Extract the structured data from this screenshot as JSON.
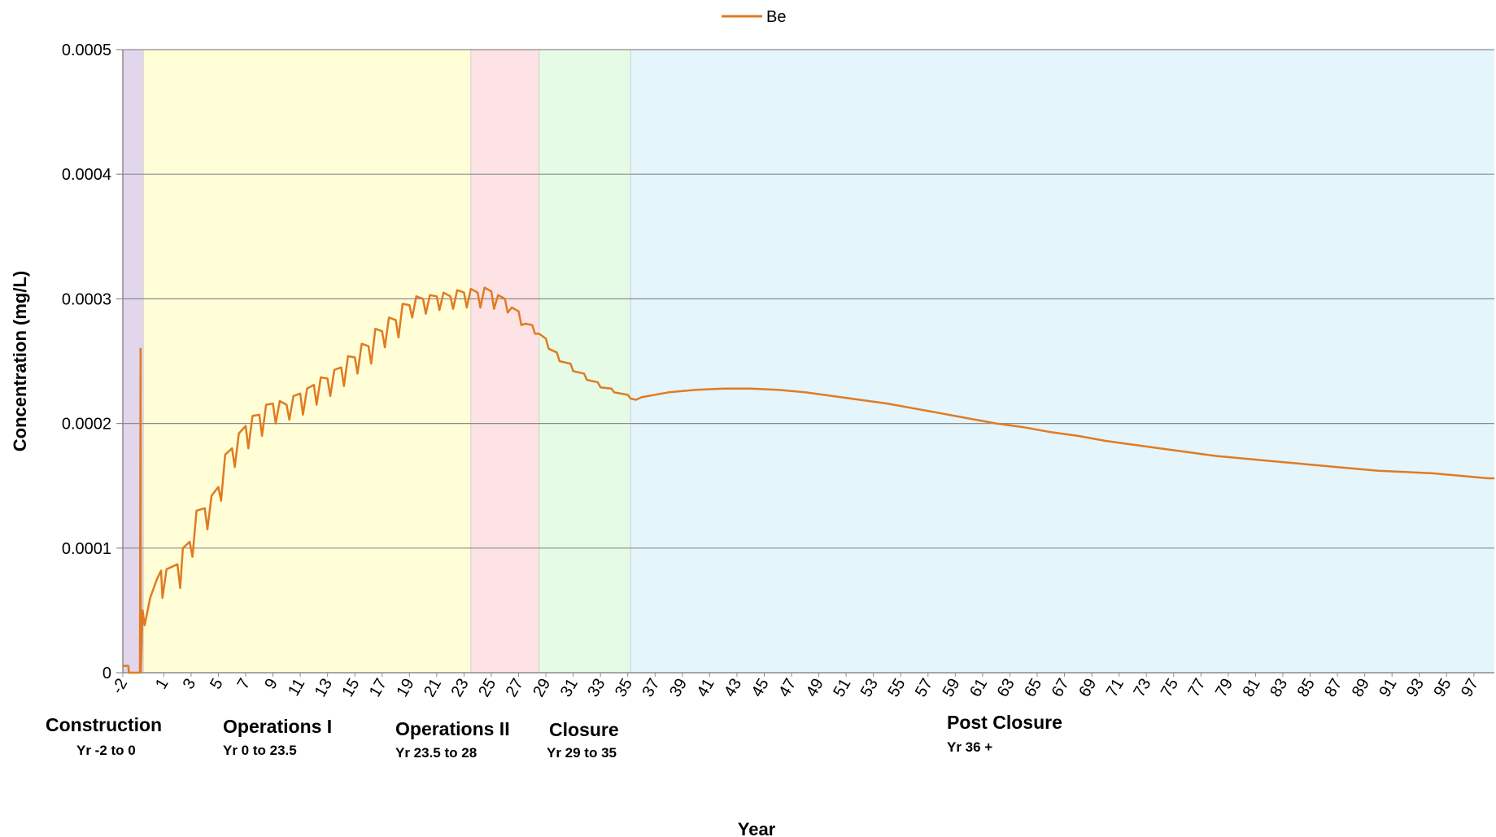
{
  "chart_data": {
    "type": "line",
    "title": "",
    "xlabel": "Year",
    "ylabel": "Concentration (mg/L)",
    "xlim": [
      -2,
      98.5
    ],
    "ylim": [
      0,
      0.0005
    ],
    "yticks": [
      {
        "value": 0,
        "label": "0"
      },
      {
        "value": 0.0001,
        "label": "0.0001"
      },
      {
        "value": 0.0002,
        "label": "0.0002"
      },
      {
        "value": 0.0003,
        "label": "0.0003"
      },
      {
        "value": 0.0004,
        "label": "0.0004"
      },
      {
        "value": 0.0005,
        "label": "0.0005"
      }
    ],
    "xticks": [
      "-2",
      "1",
      "3",
      "5",
      "7",
      "9",
      "11",
      "13",
      "15",
      "17",
      "19",
      "21",
      "23",
      "25",
      "27",
      "29",
      "31",
      "33",
      "35",
      "37",
      "39",
      "41",
      "43",
      "45",
      "47",
      "49",
      "51",
      "53",
      "55",
      "57",
      "59",
      "61",
      "63",
      "65",
      "67",
      "69",
      "71",
      "73",
      "75",
      "77",
      "79",
      "81",
      "83",
      "85",
      "87",
      "89",
      "91",
      "93",
      "95",
      "97"
    ],
    "grid": true,
    "legend_position": "top-center",
    "phases": [
      {
        "name": "Construction",
        "range": "Yr -2 to 0",
        "start": -2,
        "end": -0.5,
        "color": "#e2d6ec"
      },
      {
        "name": "Operations I",
        "range": "Yr 0 to 23.5",
        "start": -0.5,
        "end": 23.5,
        "color": "#fffed7"
      },
      {
        "name": "Operations II",
        "range": "Yr 23.5 to 28",
        "start": 23.5,
        "end": 28.5,
        "color": "#fde3e5"
      },
      {
        "name": "Closure",
        "range": "Yr 29 to 35",
        "start": 28.5,
        "end": 35.2,
        "color": "#e6fbe6"
      },
      {
        "name": "Post Closure",
        "range": "Yr 36 +",
        "start": 35.2,
        "end": 98.5,
        "color": "#e4f5fc"
      }
    ],
    "series": [
      {
        "name": "Be",
        "color": "#e07b22",
        "points": [
          [
            -2.0,
            5.5e-06
          ],
          [
            -1.6,
            5.5e-06
          ],
          [
            -1.55,
            0.0
          ],
          [
            -0.75,
            0.0
          ],
          [
            -0.7,
            0.00026
          ],
          [
            -0.68,
            0.0
          ],
          [
            -0.55,
            5e-05
          ],
          [
            -0.4,
            3.8e-05
          ],
          [
            0.0,
            6e-05
          ],
          [
            0.5,
            7.5e-05
          ],
          [
            0.8,
            8.2e-05
          ],
          [
            0.9,
            6e-05
          ],
          [
            1.2,
            8.3e-05
          ],
          [
            2.0,
            8.7e-05
          ],
          [
            2.2,
            6.8e-05
          ],
          [
            2.4,
            0.0001
          ],
          [
            2.9,
            0.000105
          ],
          [
            3.1,
            9.3e-05
          ],
          [
            3.4,
            0.00013
          ],
          [
            4.0,
            0.000132
          ],
          [
            4.2,
            0.000115
          ],
          [
            4.5,
            0.000142
          ],
          [
            5.0,
            0.000149
          ],
          [
            5.2,
            0.000138
          ],
          [
            5.5,
            0.000175
          ],
          [
            6.0,
            0.00018
          ],
          [
            6.2,
            0.000165
          ],
          [
            6.5,
            0.000192
          ],
          [
            7.0,
            0.000198
          ],
          [
            7.2,
            0.00018
          ],
          [
            7.5,
            0.000206
          ],
          [
            8.0,
            0.000207
          ],
          [
            8.2,
            0.00019
          ],
          [
            8.5,
            0.000215
          ],
          [
            9.0,
            0.000216
          ],
          [
            9.2,
            0.0002
          ],
          [
            9.5,
            0.000218
          ],
          [
            10.0,
            0.000215
          ],
          [
            10.2,
            0.000203
          ],
          [
            10.5,
            0.000222
          ],
          [
            11.0,
            0.000224
          ],
          [
            11.2,
            0.000207
          ],
          [
            11.5,
            0.000228
          ],
          [
            12.0,
            0.000231
          ],
          [
            12.2,
            0.000215
          ],
          [
            12.5,
            0.000237
          ],
          [
            13.0,
            0.000236
          ],
          [
            13.2,
            0.000222
          ],
          [
            13.5,
            0.000243
          ],
          [
            14.0,
            0.000245
          ],
          [
            14.2,
            0.00023
          ],
          [
            14.5,
            0.000254
          ],
          [
            15.0,
            0.000253
          ],
          [
            15.2,
            0.00024
          ],
          [
            15.5,
            0.000264
          ],
          [
            16.0,
            0.000262
          ],
          [
            16.2,
            0.000248
          ],
          [
            16.5,
            0.000276
          ],
          [
            17.0,
            0.000274
          ],
          [
            17.2,
            0.000261
          ],
          [
            17.5,
            0.000285
          ],
          [
            18.0,
            0.000283
          ],
          [
            18.2,
            0.000269
          ],
          [
            18.5,
            0.000296
          ],
          [
            19.0,
            0.000295
          ],
          [
            19.2,
            0.000285
          ],
          [
            19.5,
            0.000302
          ],
          [
            20.0,
            0.0003
          ],
          [
            20.2,
            0.000288
          ],
          [
            20.5,
            0.000303
          ],
          [
            21.0,
            0.000302
          ],
          [
            21.2,
            0.000291
          ],
          [
            21.5,
            0.000305
          ],
          [
            22.0,
            0.000302
          ],
          [
            22.2,
            0.000292
          ],
          [
            22.5,
            0.000307
          ],
          [
            23.0,
            0.000305
          ],
          [
            23.2,
            0.000293
          ],
          [
            23.5,
            0.000308
          ],
          [
            24.0,
            0.000305
          ],
          [
            24.2,
            0.000293
          ],
          [
            24.5,
            0.000309
          ],
          [
            25.0,
            0.000306
          ],
          [
            25.2,
            0.000292
          ],
          [
            25.5,
            0.000303
          ],
          [
            26.0,
            0.0003
          ],
          [
            26.2,
            0.000289
          ],
          [
            26.5,
            0.000293
          ],
          [
            27.0,
            0.00029
          ],
          [
            27.2,
            0.000279
          ],
          [
            27.5,
            0.00028
          ],
          [
            28.0,
            0.000279
          ],
          [
            28.2,
            0.000272
          ],
          [
            28.5,
            0.000272
          ],
          [
            29.0,
            0.000268
          ],
          [
            29.2,
            0.00026
          ],
          [
            29.8,
            0.000257
          ],
          [
            30.0,
            0.00025
          ],
          [
            30.8,
            0.000248
          ],
          [
            31.0,
            0.000242
          ],
          [
            31.8,
            0.00024
          ],
          [
            32.0,
            0.000235
          ],
          [
            32.8,
            0.000233
          ],
          [
            33.0,
            0.000229
          ],
          [
            33.8,
            0.000228
          ],
          [
            34.0,
            0.000225
          ],
          [
            35.0,
            0.000223
          ],
          [
            35.2,
            0.00022
          ],
          [
            35.6,
            0.000219
          ],
          [
            36.0,
            0.000221
          ],
          [
            38.0,
            0.000225
          ],
          [
            40.0,
            0.000227
          ],
          [
            42.0,
            0.000228
          ],
          [
            44.0,
            0.000228
          ],
          [
            46.0,
            0.000227
          ],
          [
            48.0,
            0.000225
          ],
          [
            50.0,
            0.000222
          ],
          [
            52.0,
            0.000219
          ],
          [
            54.0,
            0.000216
          ],
          [
            56.0,
            0.000212
          ],
          [
            58.0,
            0.000208
          ],
          [
            60.0,
            0.000204
          ],
          [
            62.0,
            0.0002
          ],
          [
            64.0,
            0.000197
          ],
          [
            66.0,
            0.000193
          ],
          [
            68.0,
            0.00019
          ],
          [
            70.0,
            0.000186
          ],
          [
            72.0,
            0.000183
          ],
          [
            74.0,
            0.00018
          ],
          [
            76.0,
            0.000177
          ],
          [
            78.0,
            0.000174
          ],
          [
            80.0,
            0.000172
          ],
          [
            82.0,
            0.00017
          ],
          [
            84.0,
            0.000168
          ],
          [
            86.0,
            0.000166
          ],
          [
            88.0,
            0.000164
          ],
          [
            90.0,
            0.000162
          ],
          [
            92.0,
            0.000161
          ],
          [
            94.0,
            0.00016
          ],
          [
            96.0,
            0.000158
          ],
          [
            98.0,
            0.000156
          ],
          [
            98.5,
            0.000156
          ]
        ]
      }
    ]
  }
}
